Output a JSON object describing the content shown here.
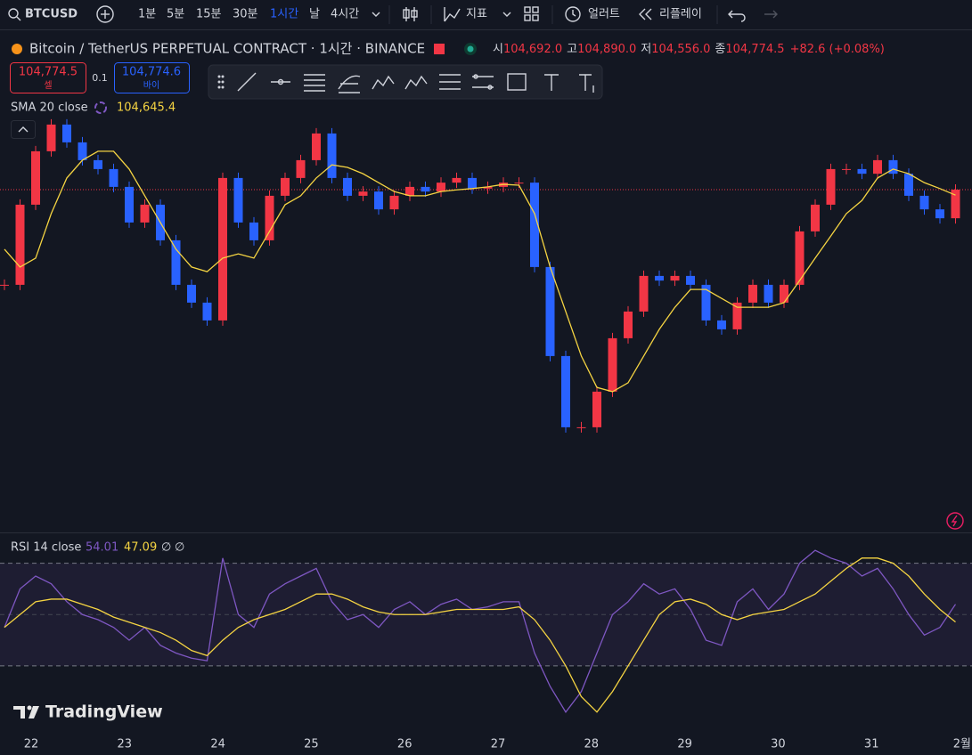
{
  "toolbar": {
    "symbol": "BTCUSD",
    "intervals": [
      "1분",
      "5분",
      "15분",
      "30분",
      "1시간",
      "날",
      "4시간"
    ],
    "indicators": "지표",
    "alert": "얼러트",
    "replay": "리플레이"
  },
  "legend": {
    "title": "Bitcoin / TetherUS PERPETUAL CONTRACT · 1시간 · BINANCE",
    "ohlc": [
      {
        "label": "시",
        "value": "104,692.0"
      },
      {
        "label": "고",
        "value": "104,890.0"
      },
      {
        "label": "저",
        "value": "104,556.0"
      },
      {
        "label": "종",
        "value": "104,774.5"
      }
    ],
    "change": "+82.6 (+0.08%)"
  },
  "trade": {
    "sell_price": "104,774.5",
    "sell_label": "셀",
    "spread": "0.1",
    "buy_price": "104,774.6",
    "buy_label": "바이"
  },
  "sma_legend": {
    "label": "SMA 20 close",
    "value": "104,645.4"
  },
  "rsi_legend": {
    "label": "RSI 14 close",
    "value": "54.01",
    "ma_value": "47.09",
    "extras": [
      "∅",
      "∅"
    ]
  },
  "branding": "TradingView",
  "time_axis": [
    "22",
    "23",
    "24",
    "25",
    "26",
    "27",
    "28",
    "29",
    "30",
    "31",
    "2월"
  ],
  "chart_data": [
    {
      "type": "candlestick",
      "up_color": "#f23645",
      "down_color": "#2962ff",
      "closes": [
        102530,
        104420,
        105680,
        106310,
        105890,
        105470,
        105260,
        104840,
        104000,
        104420,
        103580,
        102530,
        102110,
        101690,
        105050,
        104000,
        103580,
        104630,
        105050,
        105470,
        106100,
        105050,
        104630,
        104730,
        104310,
        104630,
        104840,
        104730,
        104940,
        105050,
        104800,
        104840,
        104940,
        104940,
        102950,
        100850,
        99170,
        99170,
        100010,
        101270,
        101900,
        102740,
        102630,
        102740,
        102530,
        101690,
        101480,
        102110,
        102530,
        102110,
        102530,
        103790,
        104420,
        105260,
        105260,
        105150,
        105470,
        105150,
        104630,
        104310,
        104100,
        104774.5
      ],
      "sma": {
        "color": "#f5d442",
        "values": [
          103370,
          102950,
          103160,
          104210,
          105050,
          105470,
          105680,
          105680,
          105260,
          104630,
          104000,
          103370,
          102950,
          102840,
          103160,
          103260,
          103160,
          103790,
          104420,
          104630,
          105050,
          105360,
          105300,
          105150,
          104940,
          104730,
          104630,
          104630,
          104730,
          104770,
          104800,
          104840,
          104900,
          104880,
          104210,
          102950,
          101900,
          100850,
          100110,
          100010,
          100220,
          100850,
          101480,
          102000,
          102420,
          102420,
          102210,
          102000,
          102000,
          102000,
          102110,
          102630,
          103160,
          103680,
          104210,
          104520,
          105050,
          105260,
          105150,
          104940,
          104800,
          104645.4
        ]
      },
      "ylim": [
        96690,
        108450
      ]
    },
    {
      "type": "line",
      "series": [
        {
          "color": "#7e57c2",
          "values": [
            45,
            60,
            65,
            62,
            55,
            50,
            48,
            45,
            40,
            45,
            38,
            35,
            33,
            32,
            72,
            50,
            45,
            58,
            62,
            65,
            68,
            55,
            48,
            50,
            45,
            52,
            55,
            50,
            54,
            56,
            52,
            53,
            55,
            55,
            35,
            22,
            12,
            20,
            35,
            50,
            55,
            62,
            58,
            60,
            52,
            40,
            38,
            55,
            60,
            52,
            58,
            70,
            75,
            72,
            70,
            65,
            68,
            60,
            50,
            42,
            45,
            54.01
          ]
        },
        {
          "color": "#f5d442",
          "values": [
            45,
            50,
            55,
            56,
            56,
            54,
            52,
            49,
            47,
            45,
            43,
            40,
            36,
            34,
            40,
            45,
            48,
            50,
            52,
            55,
            58,
            58,
            56,
            53,
            51,
            50,
            50,
            50,
            51,
            52,
            52,
            52,
            52,
            53,
            48,
            40,
            30,
            18,
            12,
            20,
            30,
            40,
            50,
            55,
            56,
            54,
            50,
            48,
            50,
            51,
            52,
            55,
            58,
            63,
            68,
            72,
            72,
            70,
            65,
            58,
            52,
            47.09
          ]
        }
      ],
      "levels": [
        30,
        50,
        70
      ],
      "ylim": [
        5,
        82
      ]
    }
  ]
}
